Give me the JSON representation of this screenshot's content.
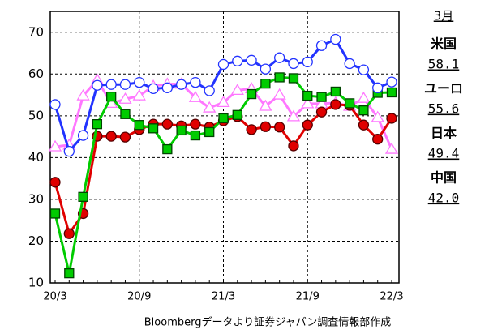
{
  "chart_data": {
    "type": "line",
    "categories": [
      "20/3",
      null,
      null,
      null,
      null,
      null,
      "20/9",
      null,
      null,
      null,
      null,
      null,
      "21/3",
      null,
      null,
      null,
      null,
      null,
      "21/9",
      null,
      null,
      null,
      null,
      null,
      "22/3"
    ],
    "series": [
      {
        "name": "米国",
        "color": "#2233ff",
        "marker": "circle",
        "marker_fill": "#ffffff",
        "values": [
          52.7,
          41.5,
          45.3,
          57.3,
          57.5,
          57.5,
          58,
          56.5,
          56.7,
          57.5,
          58,
          56,
          62.3,
          63.1,
          63.3,
          61.2,
          63.9,
          62.5,
          62.9,
          66.8,
          68.3,
          62.5,
          61,
          56.7,
          58.1
        ],
        "value_labels": [
          null,
          null,
          null,
          null,
          null,
          null,
          null,
          null,
          null,
          null,
          null,
          null,
          null,
          null,
          null,
          null,
          null,
          null,
          null,
          null,
          null,
          null,
          null,
          null,
          "58.1"
        ]
      },
      {
        "name": "ユーロ",
        "color": "#00cc00",
        "marker": "square",
        "marker_fill": "#00cc00",
        "values": [
          26.6,
          12.3,
          30.6,
          48,
          54.6,
          50.4,
          47.8,
          47,
          42,
          46.5,
          45.3,
          46.1,
          49.4,
          50.2,
          55.2,
          57.7,
          59.2,
          59,
          54.8,
          54.5,
          55.8,
          53,
          51.3,
          55.5,
          55.6
        ],
        "value_labels": [
          null,
          null,
          null,
          null,
          null,
          null,
          null,
          null,
          null,
          null,
          null,
          null,
          null,
          null,
          null,
          null,
          null,
          null,
          null,
          null,
          null,
          null,
          null,
          null,
          "55.6"
        ]
      },
      {
        "name": "日本",
        "color": "#e00000",
        "marker": "circle",
        "marker_fill": "#e00000",
        "values": [
          34.1,
          21.8,
          26.6,
          45.1,
          45.1,
          44.9,
          46.7,
          48,
          48,
          47.6,
          48,
          47.3,
          48.8,
          49.8,
          46.7,
          47.4,
          47.3,
          42.8,
          47.8,
          50.9,
          52.7,
          52.5,
          47.8,
          44.4,
          49.4
        ],
        "value_labels": [
          null,
          null,
          null,
          null,
          null,
          null,
          null,
          null,
          null,
          null,
          null,
          null,
          null,
          null,
          null,
          null,
          null,
          null,
          null,
          null,
          null,
          null,
          null,
          null,
          "49.4"
        ]
      },
      {
        "name": "中国",
        "color": "#ff77ff",
        "marker": "triangle",
        "marker_fill": "#ffffff",
        "values": [
          42.6,
          43,
          54.8,
          58.6,
          53,
          54,
          54.8,
          57.1,
          57.6,
          57.6,
          54.4,
          51.9,
          53.2,
          56.1,
          56.5,
          52.3,
          55,
          49.8,
          52.9,
          52.9,
          53.1,
          52.3,
          54.2,
          49.6,
          42
        ],
        "value_labels": [
          null,
          null,
          null,
          null,
          null,
          null,
          null,
          null,
          null,
          null,
          null,
          null,
          null,
          null,
          null,
          null,
          null,
          null,
          null,
          null,
          null,
          null,
          null,
          null,
          "42.0"
        ]
      }
    ],
    "legend_title": "3月",
    "ylim": [
      10,
      75
    ],
    "yticks": [
      10,
      20,
      30,
      40,
      50,
      60,
      70
    ],
    "grid": true,
    "footnote": "Bloombergデータより証券ジャパン調査情報部作成"
  }
}
